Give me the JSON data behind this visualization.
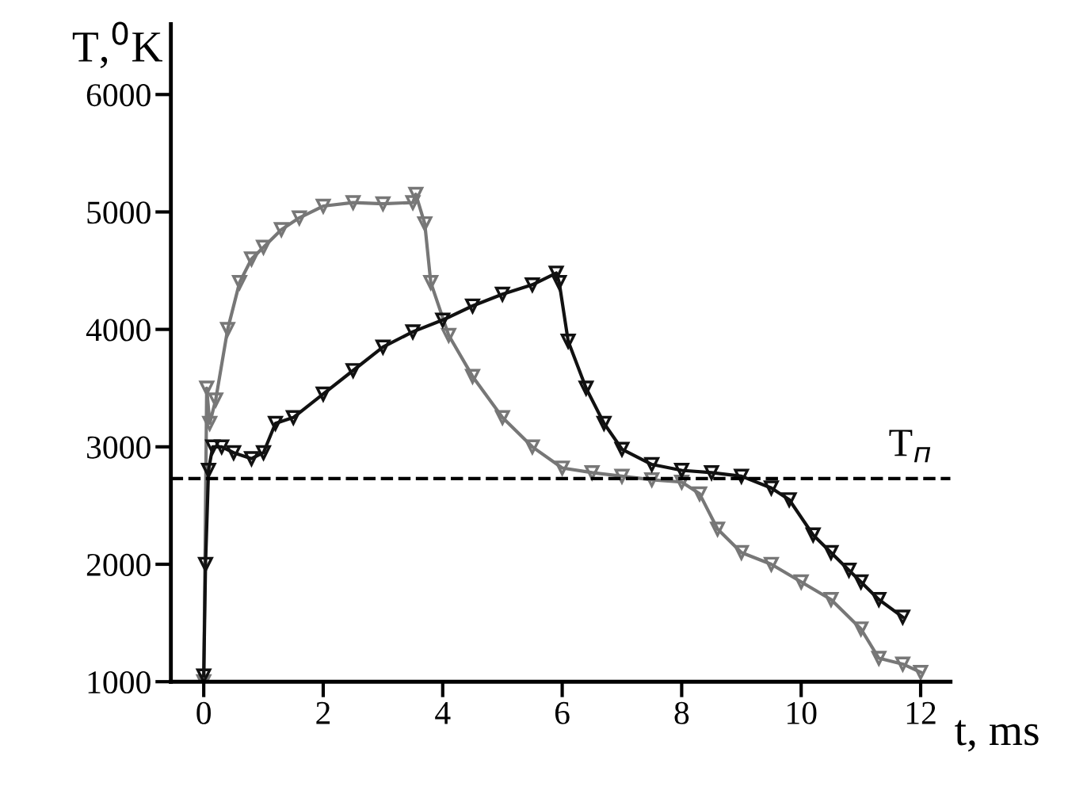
{
  "chart_data": {
    "type": "line",
    "xlabel": "t, ms",
    "ylabel": "T,$^{0}$K",
    "xlim": [
      -0.55,
      12.5
    ],
    "ylim": [
      1000,
      6600
    ],
    "xticks": [
      0,
      2,
      4,
      6,
      8,
      10,
      12
    ],
    "yticks": [
      1000,
      2000,
      3000,
      4000,
      5000,
      6000
    ],
    "grid": false,
    "legend": false,
    "marker": "triangle",
    "line_style": "solid",
    "series": [
      {
        "color": "#777777",
        "x": [
          0,
          0.05,
          0.1,
          0.2,
          0.4,
          0.6,
          0.8,
          1.0,
          1.3,
          1.6,
          2.0,
          2.5,
          3.0,
          3.5,
          3.55,
          3.7,
          3.8,
          4.1,
          4.5,
          5.0,
          5.5,
          6.0,
          6.5,
          7.0,
          7.5,
          8.0,
          8.3,
          8.6,
          9.0,
          9.5,
          10.0,
          10.5,
          11.0,
          11.3,
          11.7,
          12.0
        ],
        "values": [
          1000,
          3500,
          3200,
          3400,
          4000,
          4400,
          4600,
          4700,
          4850,
          4950,
          5050,
          5080,
          5070,
          5080,
          5150,
          4900,
          4400,
          3950,
          3600,
          3250,
          3000,
          2820,
          2780,
          2750,
          2720,
          2700,
          2600,
          2300,
          2100,
          2000,
          1850,
          1700,
          1450,
          1200,
          1150,
          1080
        ]
      },
      {
        "color": "#111111",
        "x": [
          0,
          0.03,
          0.08,
          0.15,
          0.3,
          0.5,
          0.8,
          1.0,
          1.2,
          1.5,
          2.0,
          2.5,
          3.0,
          3.5,
          4.0,
          4.5,
          5.0,
          5.5,
          5.9,
          5.95,
          6.1,
          6.4,
          6.7,
          7.0,
          7.5,
          8.0,
          8.5,
          9.0,
          9.5,
          9.8,
          10.2,
          10.5,
          10.8,
          11.0,
          11.3,
          11.7
        ],
        "values": [
          1050,
          2000,
          2800,
          3000,
          3000,
          2950,
          2900,
          2950,
          3200,
          3250,
          3450,
          3650,
          3850,
          3980,
          4080,
          4200,
          4300,
          4380,
          4480,
          4400,
          3900,
          3500,
          3200,
          2980,
          2850,
          2800,
          2780,
          2750,
          2650,
          2550,
          2250,
          2100,
          1950,
          1850,
          1700,
          1550
        ]
      }
    ],
    "ref_lines": [
      {
        "axis": "y",
        "value": 2730,
        "label": "T$_{п}$",
        "line_style": "dashed",
        "color": "#000000"
      }
    ]
  }
}
